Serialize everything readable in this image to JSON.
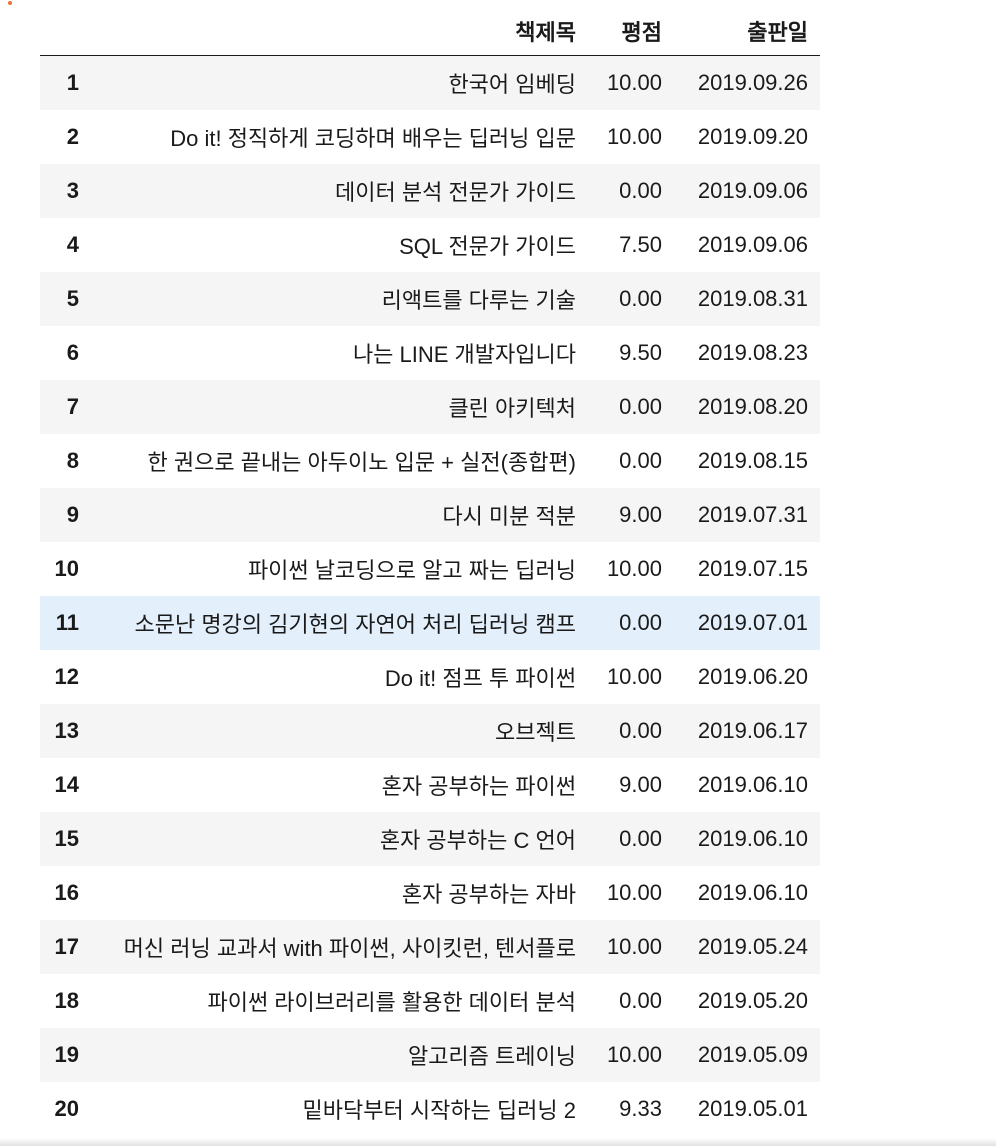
{
  "table": {
    "headers": {
      "index": "",
      "title": "책제목",
      "rating": "평점",
      "date": "출판일"
    },
    "highlighted_row": 11,
    "rows": [
      {
        "idx": "1",
        "title": "한국어 임베딩",
        "rating": "10.00",
        "date": "2019.09.26"
      },
      {
        "idx": "2",
        "title": "Do it! 정직하게 코딩하며 배우는 딥러닝 입문",
        "rating": "10.00",
        "date": "2019.09.20"
      },
      {
        "idx": "3",
        "title": "데이터 분석 전문가 가이드",
        "rating": "0.00",
        "date": "2019.09.06"
      },
      {
        "idx": "4",
        "title": "SQL 전문가 가이드",
        "rating": "7.50",
        "date": "2019.09.06"
      },
      {
        "idx": "5",
        "title": "리액트를 다루는 기술",
        "rating": "0.00",
        "date": "2019.08.31"
      },
      {
        "idx": "6",
        "title": "나는 LINE 개발자입니다",
        "rating": "9.50",
        "date": "2019.08.23"
      },
      {
        "idx": "7",
        "title": "클린 아키텍처",
        "rating": "0.00",
        "date": "2019.08.20"
      },
      {
        "idx": "8",
        "title": "한 권으로 끝내는 아두이노 입문 + 실전(종합편)",
        "rating": "0.00",
        "date": "2019.08.15"
      },
      {
        "idx": "9",
        "title": "다시 미분 적분",
        "rating": "9.00",
        "date": "2019.07.31"
      },
      {
        "idx": "10",
        "title": "파이썬 날코딩으로 알고 짜는 딥러닝",
        "rating": "10.00",
        "date": "2019.07.15"
      },
      {
        "idx": "11",
        "title": "소문난 명강의 김기현의 자연어 처리 딥러닝 캠프",
        "rating": "0.00",
        "date": "2019.07.01"
      },
      {
        "idx": "12",
        "title": "Do it! 점프 투 파이썬",
        "rating": "10.00",
        "date": "2019.06.20"
      },
      {
        "idx": "13",
        "title": "오브젝트",
        "rating": "0.00",
        "date": "2019.06.17"
      },
      {
        "idx": "14",
        "title": "혼자 공부하는 파이썬",
        "rating": "9.00",
        "date": "2019.06.10"
      },
      {
        "idx": "15",
        "title": "혼자 공부하는 C 언어",
        "rating": "0.00",
        "date": "2019.06.10"
      },
      {
        "idx": "16",
        "title": "혼자 공부하는 자바",
        "rating": "10.00",
        "date": "2019.06.10"
      },
      {
        "idx": "17",
        "title": "머신 러닝 교과서 with 파이썬, 사이킷런, 텐서플로",
        "rating": "10.00",
        "date": "2019.05.24"
      },
      {
        "idx": "18",
        "title": "파이썬 라이브러리를 활용한 데이터 분석",
        "rating": "0.00",
        "date": "2019.05.20"
      },
      {
        "idx": "19",
        "title": "알고리즘 트레이닝",
        "rating": "10.00",
        "date": "2019.05.09"
      },
      {
        "idx": "20",
        "title": "밑바닥부터 시작하는 딥러닝 2",
        "rating": "9.33",
        "date": "2019.05.01"
      }
    ]
  },
  "colors": {
    "row_stripe": "#f5f5f5",
    "row_hover": "#e3effb",
    "text": "#1a1a1a"
  }
}
